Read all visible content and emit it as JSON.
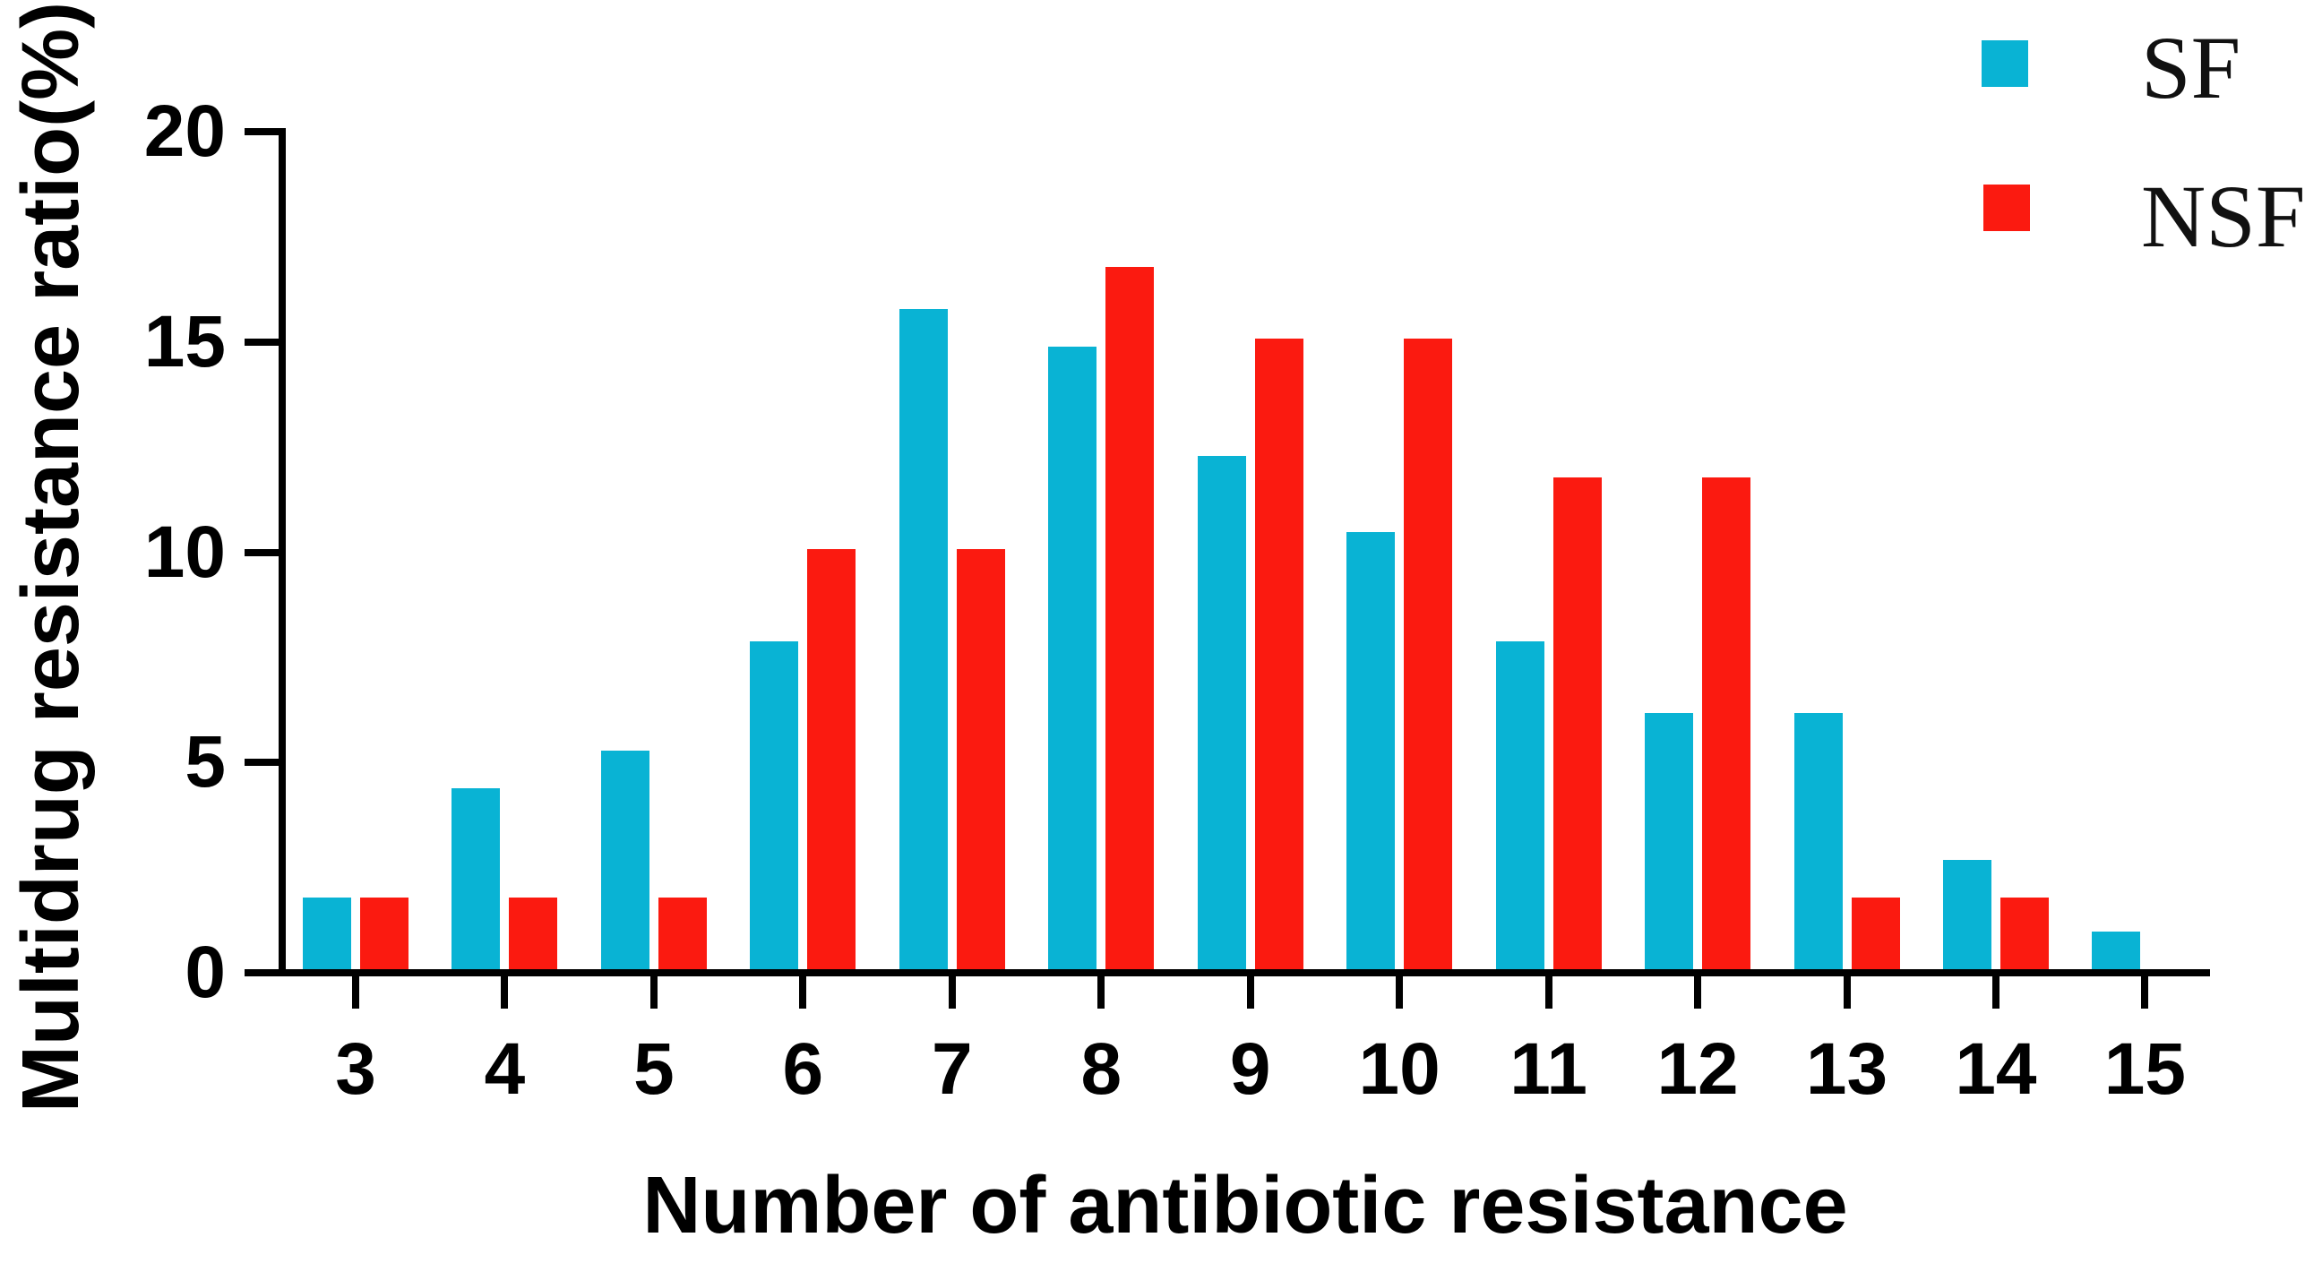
{
  "figure": {
    "background": "#FFFFFF",
    "text_color": "#000000"
  },
  "chart_data": {
    "type": "bar",
    "title": "",
    "xlabel": "Number of antibiotic resistance",
    "ylabel": "Multidrug resistance ratio(%)",
    "categories": [
      "3",
      "4",
      "5",
      "6",
      "7",
      "8",
      "9",
      "10",
      "11",
      "12",
      "13",
      "14",
      "15"
    ],
    "series": [
      {
        "name": "SF",
        "color": "#09B3D4",
        "values": [
          1.7,
          4.3,
          5.2,
          7.8,
          15.7,
          14.8,
          12.2,
          10.4,
          7.8,
          6.1,
          6.1,
          2.6,
          0.9
        ]
      },
      {
        "name": "NSF",
        "color": "#FB1A10",
        "values": [
          1.7,
          1.7,
          1.7,
          10.0,
          10.0,
          16.7,
          15.0,
          15.0,
          11.7,
          11.7,
          1.7,
          1.7,
          0
        ]
      }
    ],
    "ylim": [
      0,
      20
    ],
    "yticks": [
      "0",
      "5",
      "10",
      "15",
      "20"
    ],
    "grid": false,
    "legend_position": "top-right"
  }
}
